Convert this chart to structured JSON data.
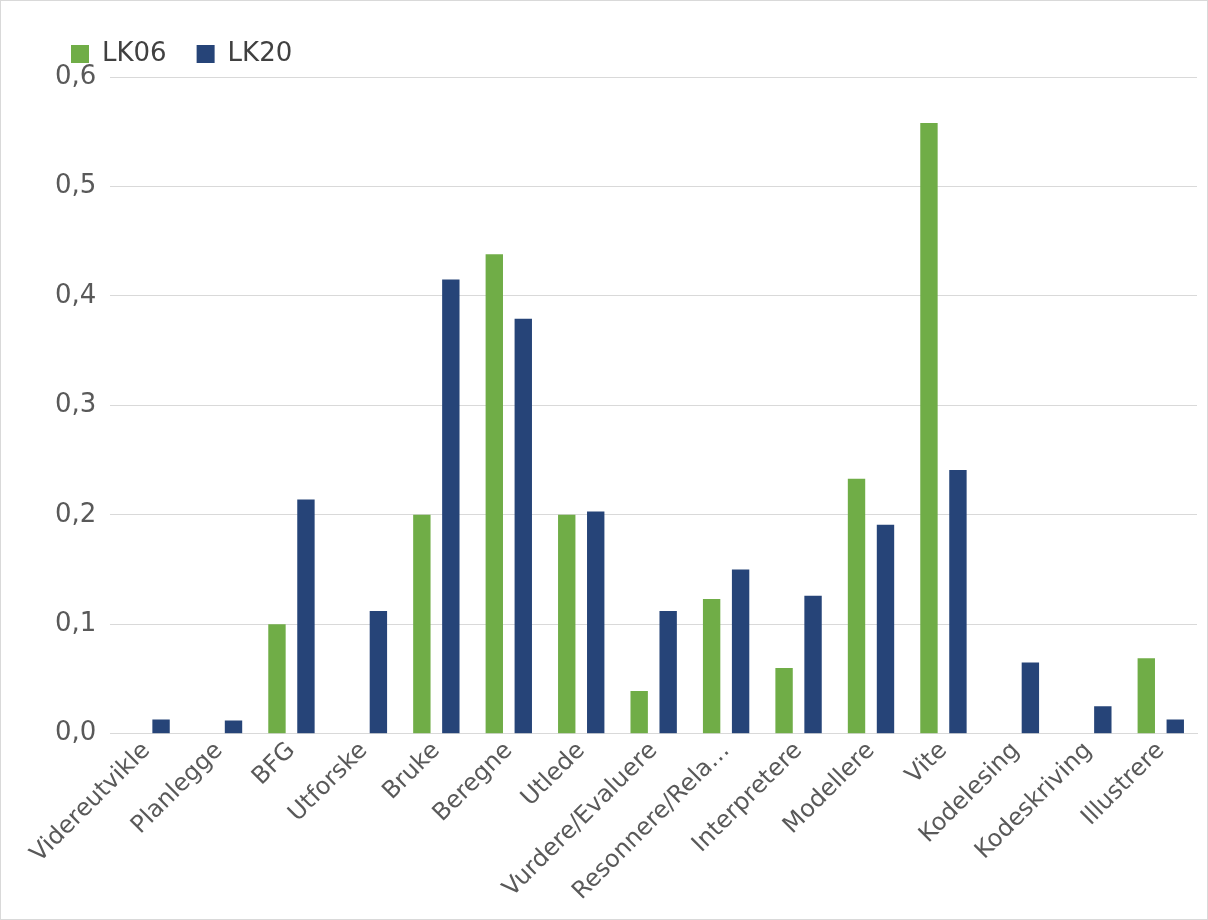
{
  "chart_data": {
    "type": "bar",
    "categories": [
      "Videreutvikle",
      "Planlegge",
      "BFG",
      "Utforske",
      "Bruke",
      "Beregne",
      "Utlede",
      "Vurdere/Evaluere",
      "Resonnere/Rela…",
      "Interpretere",
      "Modellere",
      "Vite",
      "Kodelesing",
      "Kodeskriving",
      "Illustrere"
    ],
    "series": [
      {
        "name": "LK06",
        "color": "#70ad47",
        "values": [
          0,
          0,
          0.1,
          0,
          0.2,
          0.438,
          0.2,
          0.039,
          0.123,
          0.06,
          0.233,
          0.558,
          0,
          0,
          0.069
        ]
      },
      {
        "name": "LK20",
        "color": "#264478",
        "values": [
          0.013,
          0.012,
          0.214,
          0.112,
          0.415,
          0.379,
          0.203,
          0.112,
          0.15,
          0.126,
          0.191,
          0.241,
          0.065,
          0.025,
          0.013
        ]
      }
    ],
    "ylim": [
      0,
      0.6
    ],
    "yticks": [
      {
        "value": 0,
        "label": "0,0"
      },
      {
        "value": 0.1,
        "label": "0,1"
      },
      {
        "value": 0.2,
        "label": "0,2"
      },
      {
        "value": 0.3,
        "label": "0,3"
      },
      {
        "value": 0.4,
        "label": "0,4"
      },
      {
        "value": 0.5,
        "label": "0,5"
      },
      {
        "value": 0.6,
        "label": "0,6"
      }
    ],
    "grid": "y",
    "legend": "top left"
  }
}
